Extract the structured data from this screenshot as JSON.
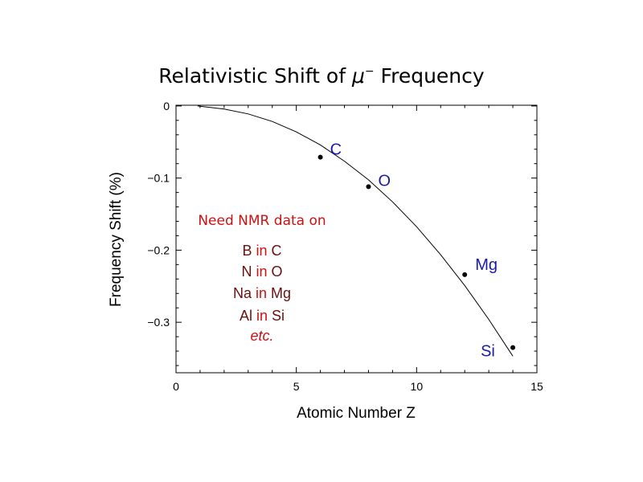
{
  "chart_data": {
    "type": "scatter",
    "title_main": "Relativistic Shift of ",
    "title_symbol": "μ",
    "title_sup": "−",
    "title_rest": " Frequency",
    "xlabel": "Atomic Number Z",
    "ylabel": "Frequency Shift (%)",
    "xlim": [
      0,
      15
    ],
    "ylim": [
      -0.37,
      0.001
    ],
    "x_ticks": [
      0,
      5,
      10,
      15
    ],
    "x_tick_labels": [
      "0",
      "5",
      "10",
      "15"
    ],
    "y_ticks": [
      0,
      -0.1,
      -0.2,
      -0.3
    ],
    "y_tick_labels": [
      "0",
      "−0.1",
      "−0.2",
      "−0.3"
    ],
    "grid": false,
    "points": [
      {
        "label": "C",
        "x": 6,
        "y": -0.071
      },
      {
        "label": "O",
        "x": 8,
        "y": -0.112
      },
      {
        "label": "Mg",
        "x": 12,
        "y": -0.234
      },
      {
        "label": "Si",
        "x": 14,
        "y": -0.335
      }
    ],
    "curve": {
      "x": [
        0.9,
        2,
        3,
        4,
        5,
        6,
        7,
        8,
        9,
        10,
        11,
        12,
        13,
        14
      ],
      "y": [
        0.0,
        -0.0044,
        -0.011,
        -0.0215,
        -0.036,
        -0.054,
        -0.0765,
        -0.1025,
        -0.133,
        -0.1675,
        -0.2065,
        -0.249,
        -0.296,
        -0.347
      ]
    },
    "annotation": {
      "heading": "Need NMR data on",
      "lines": [
        {
          "left": "B",
          "mid": "in",
          "right": "C"
        },
        {
          "left": "N",
          "mid": "in",
          "right": "O"
        },
        {
          "left": "Na",
          "mid": "in",
          "right": "Mg"
        },
        {
          "left": "Al",
          "mid": "in",
          "right": "Si"
        }
      ],
      "etc": "etc."
    }
  }
}
